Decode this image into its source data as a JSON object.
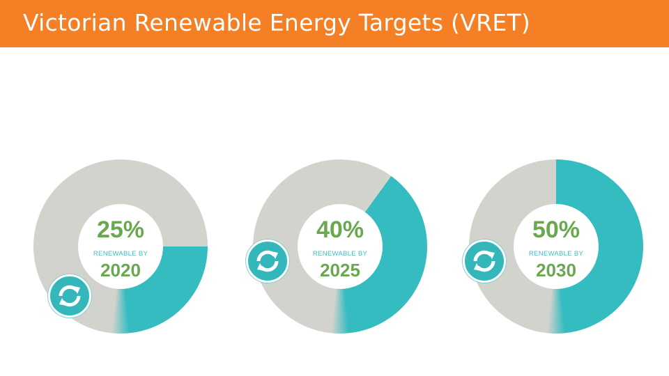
{
  "header": {
    "title": "Victorian Renewable Energy Targets (VRET)",
    "background_color": "#f47f24",
    "text_color": "#ffffff"
  },
  "targets": [
    {
      "percent_label": "25%",
      "sub_label": "RENEWABLE BY",
      "year_label": "2020",
      "fraction": 0.25
    },
    {
      "percent_label": "40%",
      "sub_label": "RENEWABLE BY",
      "year_label": "2025",
      "fraction": 0.4
    },
    {
      "percent_label": "50%",
      "sub_label": "RENEWABLE BY",
      "year_label": "2030",
      "fraction": 0.5
    }
  ],
  "colors": {
    "filled_ring": "#35bcc1",
    "empty_ring": "#d3d3cd",
    "number_text": "#6aa84f",
    "sub_text": "#45b8bf",
    "badge": "#33b7bb"
  },
  "icon": "renew-cycle-icon"
}
